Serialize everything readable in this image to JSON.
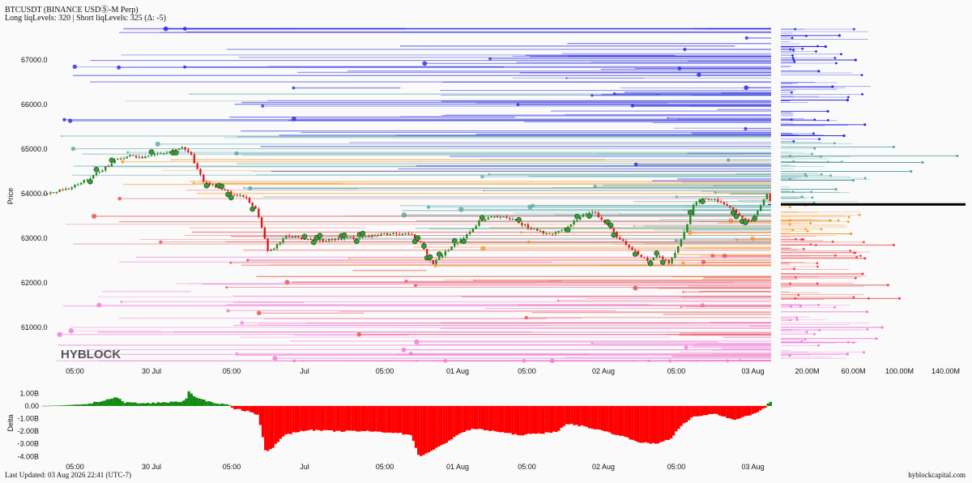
{
  "header": {
    "title": "BTCUSDT (BINANCE USDⓈ-M Perp)",
    "subtitle": "Long liqLevels: 320 | Short liqLevels: 325 (Δ: -5)"
  },
  "footer": {
    "last_updated": "Last Updated: 03 Aug 2026 22:41 (UTC-7)",
    "site": "hyblockcapital.com"
  },
  "watermark": "HYBLOCK",
  "colors": {
    "background": "#fafafa",
    "short_level_far": "#2a2ae0",
    "short_level_near": "#5aa8a8",
    "long_level_near": "#f39a2a",
    "long_level_mid": "#ea4c4c",
    "long_level_far": "#f07ad8",
    "candle_up": "#1f8a1f",
    "candle_down": "#d81e1e",
    "delta_positive": "#138a13",
    "delta_negative": "#ff0000",
    "current_price_line": "#000000"
  },
  "chart_data": [
    {
      "type": "line",
      "name": "price-liquidation-levels",
      "ylabel": "Price",
      "xlabel": "",
      "x_ticks": [
        "05:00",
        "30 Jul",
        "05:00",
        "Jul",
        "05:00",
        "01 Aug",
        "05:00",
        "02 Aug",
        "05:00",
        "03 Aug"
      ],
      "y_ticks": [
        61000,
        62000,
        63000,
        64000,
        65000,
        66000,
        67000
      ],
      "y_tick_labels": [
        "61000.0",
        "62000.0",
        "63000.0",
        "64000.0",
        "65000.0",
        "66000.0",
        "67000.0"
      ],
      "ylim": [
        60200,
        67800
      ],
      "xlim": [
        0,
        100
      ],
      "current_price": 63760,
      "price_path": [
        [
          0,
          64000
        ],
        [
          2,
          64050
        ],
        [
          4,
          64150
        ],
        [
          6,
          64300
        ],
        [
          8,
          64500
        ],
        [
          10,
          64750
        ],
        [
          12,
          64850
        ],
        [
          14,
          64820
        ],
        [
          16,
          64900
        ],
        [
          17.5,
          64950
        ],
        [
          19,
          65050
        ],
        [
          20.5,
          64850
        ],
        [
          22,
          64300
        ],
        [
          24,
          64150
        ],
        [
          26,
          64000
        ],
        [
          28,
          63900
        ],
        [
          29.5,
          63600
        ],
        [
          30.5,
          63000
        ],
        [
          31,
          62700
        ],
        [
          32,
          62800
        ],
        [
          33.5,
          63050
        ],
        [
          36,
          63000
        ],
        [
          39,
          62950
        ],
        [
          42,
          63000
        ],
        [
          45,
          63050
        ],
        [
          48,
          63100
        ],
        [
          50.5,
          63100
        ],
        [
          52,
          62900
        ],
        [
          53.5,
          62400
        ],
        [
          55,
          62650
        ],
        [
          57,
          62900
        ],
        [
          58.5,
          63100
        ],
        [
          60,
          63400
        ],
        [
          62,
          63500
        ],
        [
          64,
          63450
        ],
        [
          66,
          63300
        ],
        [
          68,
          63150
        ],
        [
          70,
          63100
        ],
        [
          72,
          63250
        ],
        [
          74,
          63500
        ],
        [
          75.5,
          63600
        ],
        [
          77,
          63400
        ],
        [
          79,
          63000
        ],
        [
          81,
          62750
        ],
        [
          83,
          62500
        ],
        [
          84.5,
          62600
        ],
        [
          86,
          62450
        ],
        [
          87,
          62700
        ],
        [
          88.5,
          63300
        ],
        [
          89.5,
          63800
        ],
        [
          91,
          63900
        ],
        [
          92.5,
          63850
        ],
        [
          94,
          63700
        ],
        [
          95.5,
          63550
        ],
        [
          97,
          63350
        ],
        [
          98.5,
          63700
        ],
        [
          99.5,
          64050
        ],
        [
          100,
          63760
        ]
      ],
      "long_liq_levels_count": 320,
      "short_liq_levels_count": 325,
      "delta_count": -5
    },
    {
      "type": "bar",
      "name": "liquidation-volume-profile",
      "x_ticks": [
        20000000,
        60000000,
        100000000,
        140000000
      ],
      "x_tick_labels": [
        "20.00M",
        "60.00M",
        "100.00M",
        "140.00M"
      ],
      "xlim": [
        0,
        160000000
      ],
      "levels": [
        {
          "price": 67550,
          "size": 48000000
        },
        {
          "price": 67300,
          "size": 36000000
        },
        {
          "price": 67000,
          "size": 62000000
        },
        {
          "price": 66750,
          "size": 30000000
        },
        {
          "price": 66400,
          "size": 42000000
        },
        {
          "price": 66100,
          "size": 55000000
        },
        {
          "price": 65850,
          "size": 38000000
        },
        {
          "price": 65550,
          "size": 70000000
        },
        {
          "price": 65300,
          "size": 52000000
        },
        {
          "price": 65050,
          "size": 95000000
        },
        {
          "price": 64850,
          "size": 150000000
        },
        {
          "price": 64700,
          "size": 120000000
        },
        {
          "price": 64500,
          "size": 110000000
        },
        {
          "price": 64300,
          "size": 60000000
        },
        {
          "price": 64100,
          "size": 45000000
        },
        {
          "price": 63400,
          "size": 40000000
        },
        {
          "price": 63100,
          "size": 58000000
        },
        {
          "price": 62850,
          "size": 95000000
        },
        {
          "price": 62550,
          "size": 70000000
        },
        {
          "price": 62200,
          "size": 68000000
        },
        {
          "price": 61950,
          "size": 90000000
        },
        {
          "price": 61650,
          "size": 100000000
        },
        {
          "price": 61350,
          "size": 72000000
        },
        {
          "price": 61000,
          "size": 85000000
        },
        {
          "price": 60750,
          "size": 80000000
        },
        {
          "price": 60400,
          "size": 55000000
        }
      ]
    },
    {
      "type": "area",
      "name": "delta",
      "ylabel": "Delta",
      "y_ticks": [
        1000000000,
        0,
        -1000000000,
        -2000000000,
        -3000000000,
        -4000000000
      ],
      "y_tick_labels": [
        "1.00B",
        "0.00",
        "-1.00B",
        "-2.00B",
        "-3.00B",
        "-4.00B"
      ],
      "ylim": [
        -4300000000,
        1600000000
      ],
      "x_ticks": [
        "05:00",
        "30 Jul",
        "05:00",
        "Jul",
        "05:00",
        "01 Aug",
        "05:00",
        "02 Aug",
        "05:00",
        "03 Aug"
      ],
      "points": [
        [
          0,
          0
        ],
        [
          3,
          50000000
        ],
        [
          6,
          150000000
        ],
        [
          8,
          400000000
        ],
        [
          10,
          700000000
        ],
        [
          11,
          300000000
        ],
        [
          14,
          200000000
        ],
        [
          17,
          300000000
        ],
        [
          19.5,
          400000000
        ],
        [
          20,
          1200000000
        ],
        [
          21,
          600000000
        ],
        [
          23,
          300000000
        ],
        [
          25.5,
          100000000
        ],
        [
          26,
          -200000000
        ],
        [
          28,
          -400000000
        ],
        [
          29.5,
          -700000000
        ],
        [
          30.5,
          -3700000000
        ],
        [
          31.5,
          -3300000000
        ],
        [
          33,
          -2300000000
        ],
        [
          36,
          -1900000000
        ],
        [
          40,
          -2000000000
        ],
        [
          44,
          -2000000000
        ],
        [
          48,
          -2100000000
        ],
        [
          50.5,
          -2300000000
        ],
        [
          51.5,
          -4000000000
        ],
        [
          53.5,
          -3500000000
        ],
        [
          55,
          -3000000000
        ],
        [
          57,
          -2200000000
        ],
        [
          59,
          -1800000000
        ],
        [
          62,
          -2000000000
        ],
        [
          65,
          -2300000000
        ],
        [
          68,
          -2200000000
        ],
        [
          70.5,
          -2000000000
        ],
        [
          72,
          -1400000000
        ],
        [
          74,
          -1600000000
        ],
        [
          77,
          -2000000000
        ],
        [
          80,
          -2500000000
        ],
        [
          82,
          -2900000000
        ],
        [
          84,
          -3000000000
        ],
        [
          86,
          -2600000000
        ],
        [
          87.5,
          -1600000000
        ],
        [
          89,
          -900000000
        ],
        [
          92,
          -600000000
        ],
        [
          95,
          -1100000000
        ],
        [
          97,
          -700000000
        ],
        [
          99,
          -200000000
        ],
        [
          99.5,
          300000000
        ],
        [
          100,
          300000000
        ]
      ]
    }
  ]
}
